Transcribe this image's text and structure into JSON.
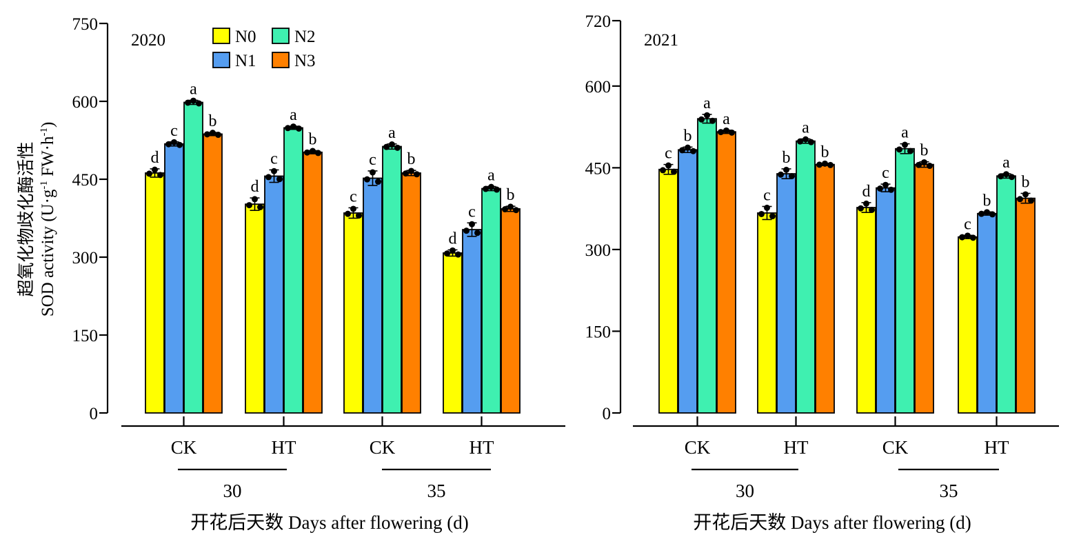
{
  "chart_data": [
    {
      "type": "bar",
      "panel_label": "2020",
      "ylabel_cn": "超氧化物歧化酶活性",
      "ylabel_en": "SOD activity (U·g",
      "ylabel_unit_tail": "FW·h",
      "ylabel_sup": "-1",
      "xlabel": "开花后天数 Days after flowering (d)",
      "ylim": [
        0,
        750
      ],
      "yticks": [
        0,
        150,
        300,
        450,
        600,
        750
      ],
      "categories": [
        "CK",
        "HT",
        "CK",
        "HT"
      ],
      "day_groups": [
        {
          "label": "30",
          "categories": [
            0,
            1
          ]
        },
        {
          "label": "35",
          "categories": [
            2,
            3
          ]
        }
      ],
      "legend_position": "top-left",
      "series": [
        {
          "name": "N0",
          "color": "#ffff00",
          "values": [
            462,
            402,
            385,
            308
          ],
          "errors": [
            8,
            12,
            10,
            6
          ],
          "letters": [
            "d",
            "d",
            "c",
            "d"
          ]
        },
        {
          "name": "N1",
          "color": "#559df0",
          "values": [
            518,
            456,
            452,
            353
          ],
          "errors": [
            4,
            12,
            14,
            13
          ],
          "letters": [
            "c",
            "c",
            "c",
            "c"
          ]
        },
        {
          "name": "N2",
          "color": "#3ff0b0",
          "values": [
            598,
            549,
            513,
            432
          ],
          "errors": [
            4,
            3,
            5,
            4
          ],
          "letters": [
            "a",
            "a",
            "a",
            "a"
          ]
        },
        {
          "name": "N3",
          "color": "#ff8000",
          "values": [
            537,
            502,
            462,
            393
          ],
          "errors": [
            3,
            3,
            5,
            5
          ],
          "letters": [
            "b",
            "b",
            "b",
            "b"
          ]
        }
      ]
    },
    {
      "type": "bar",
      "panel_label": "2021",
      "xlabel": "开花后天数 Days after flowering (d)",
      "ylim": [
        0,
        720
      ],
      "yticks": [
        0,
        150,
        300,
        450,
        600,
        720
      ],
      "categories": [
        "CK",
        "HT",
        "CK",
        "HT"
      ],
      "day_groups": [
        {
          "label": "30",
          "categories": [
            0,
            1
          ]
        },
        {
          "label": "35",
          "categories": [
            2,
            3
          ]
        }
      ],
      "series": [
        {
          "name": "N0",
          "color": "#ffff00",
          "values": [
            447,
            367,
            377,
            323
          ],
          "errors": [
            9,
            12,
            9,
            3
          ],
          "letters": [
            "c",
            "c",
            "d",
            "c"
          ]
        },
        {
          "name": "N1",
          "color": "#559df0",
          "values": [
            483,
            439,
            413,
            366
          ],
          "errors": [
            5,
            9,
            7,
            3
          ],
          "letters": [
            "b",
            "b",
            "c",
            "b"
          ]
        },
        {
          "name": "N2",
          "color": "#3ff0b0",
          "values": [
            540,
            499,
            485,
            435
          ],
          "errors": [
            8,
            4,
            9,
            4
          ],
          "letters": [
            "a",
            "a",
            "a",
            "a"
          ]
        },
        {
          "name": "N3",
          "color": "#ff8000",
          "values": [
            516,
            456,
            456,
            394
          ],
          "errors": [
            3,
            2,
            5,
            9
          ],
          "letters": [
            "a",
            "b",
            "b",
            "b"
          ]
        }
      ]
    }
  ]
}
